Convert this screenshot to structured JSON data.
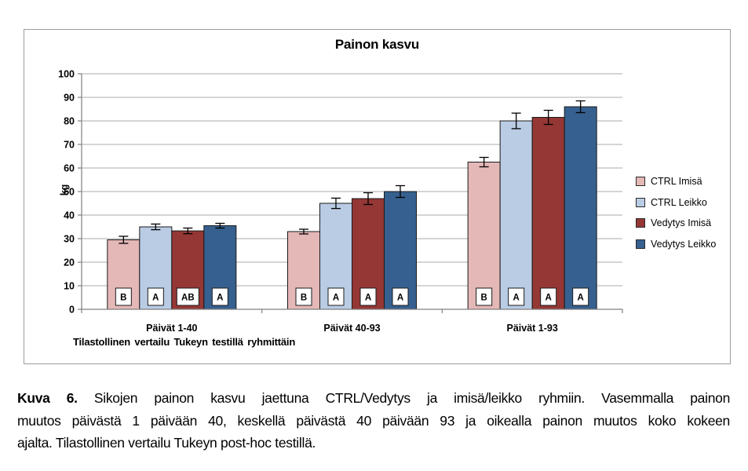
{
  "chart_data": {
    "type": "bar",
    "title": "Painon kasvu",
    "ylabel": "kg",
    "xlabel": "",
    "ylim": [
      0,
      100
    ],
    "ytick_step": 10,
    "grid": true,
    "legend_position": "right",
    "categories": [
      "Päivät 1-40",
      "Päivät 40-93",
      "Päivät 1-93"
    ],
    "series": [
      {
        "name": "CTRL Imisä",
        "color": "#E4B8B7",
        "values": [
          29.5,
          33,
          62.5
        ],
        "errors": [
          1.5,
          1,
          2
        ],
        "letters": [
          "B",
          "B",
          "B"
        ]
      },
      {
        "name": "CTRL Leikko",
        "color": "#B9CCE4",
        "values": [
          35,
          45,
          80
        ],
        "errors": [
          1.2,
          2.2,
          3.3
        ],
        "letters": [
          "A",
          "A",
          "A"
        ]
      },
      {
        "name": "Vedytys Imisä",
        "color": "#943735",
        "values": [
          33.3,
          47,
          81.5
        ],
        "errors": [
          1.2,
          2.5,
          3
        ],
        "letters": [
          "AB",
          "A",
          "A"
        ]
      },
      {
        "name": "Vedytys Leikko",
        "color": "#36608F",
        "values": [
          35.5,
          50,
          86
        ],
        "errors": [
          1,
          2.5,
          2.5
        ],
        "letters": [
          "A",
          "A",
          "A"
        ]
      }
    ],
    "annotation": "Tilastollinen vertailu Tukeyn testillä ryhmittäin"
  },
  "caption": {
    "label": "Kuva 6.",
    "lines": [
      "Sikojen painon kasvu jaettuna CTRL/Vedytys ja imisä/leikko ryhmiin. Vasemmalla painon",
      "muutos päivästä 1 päivään 40, keskellä päivästä 40 päivään 93 ja oikealla painon muutos koko kokeen",
      "ajalta. Tilastollinen vertailu Tukeyn post-hoc testillä."
    ]
  },
  "style": {
    "gridline_color": "#ABABAB",
    "axis_color": "#808080",
    "bar_border_color": "#1a1a1a",
    "error_bar_color": "#000000",
    "letter_box_fill": "#ffffff",
    "letter_box_border": "#1a1a1a",
    "text_color": "#000000"
  }
}
